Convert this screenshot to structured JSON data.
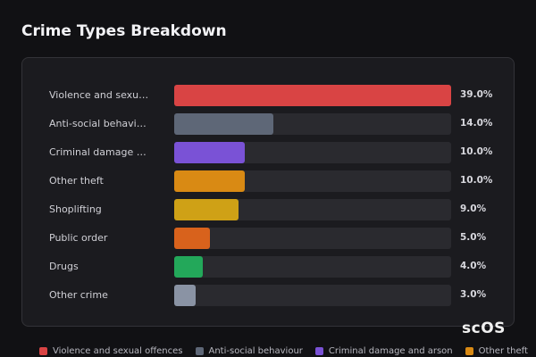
{
  "chart_data": {
    "type": "bar",
    "orientation": "horizontal",
    "title": "Crime Types Breakdown",
    "categories": [
      "Violence and sexual offences",
      "Anti-social behaviour",
      "Criminal damage and arson",
      "Other theft",
      "Shoplifting",
      "Public order",
      "Drugs",
      "Other crime"
    ],
    "values": [
      39,
      14,
      10,
      10,
      9,
      5,
      4,
      3
    ],
    "value_labels": [
      "39.0%",
      "14.0%",
      "10.0%",
      "10.0%",
      "9.0%",
      "5.0%",
      "4.0%",
      "3.0%"
    ],
    "colors": [
      "#d94444",
      "#5e6777",
      "#7a52d6",
      "#d98a14",
      "#cfa116",
      "#d8621c",
      "#23a85a",
      "#8a93a4"
    ],
    "xlim": [
      0,
      39
    ]
  },
  "watermark": "scOS"
}
